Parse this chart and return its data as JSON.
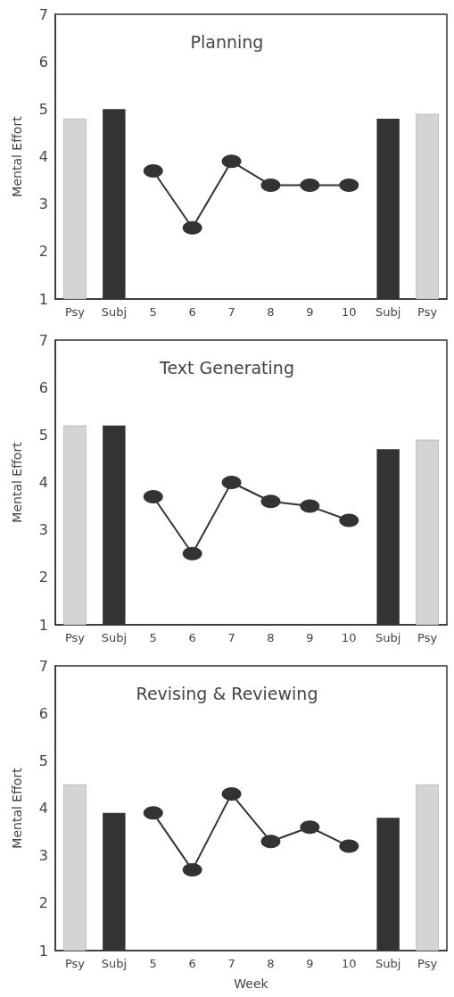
{
  "chart_data": [
    {
      "type": "bar",
      "title": "Planning",
      "ylabel": "Mental Effort",
      "categories": [
        "Psy",
        "Subj",
        "5",
        "6",
        "7",
        "8",
        "9",
        "10",
        "Subj",
        "Psy"
      ],
      "ylim": [
        1,
        7
      ],
      "yticks": [
        1,
        2,
        3,
        4,
        5,
        6,
        7
      ],
      "marker": "circle",
      "series": [
        {
          "colors": [
            "#d4d4d4",
            "#333333",
            null,
            null,
            null,
            null,
            null,
            null,
            "#333333",
            "#d4d4d4"
          ],
          "values": [
            4.8,
            5.0,
            null,
            null,
            null,
            null,
            null,
            null,
            4.8,
            4.9
          ]
        },
        {
          "type": "line",
          "color": "#333333",
          "values": [
            null,
            null,
            3.7,
            2.5,
            3.9,
            3.4,
            3.4,
            3.4,
            null,
            null
          ]
        }
      ]
    },
    {
      "type": "bar",
      "title": "Text Generating",
      "ylabel": "Mental Effort",
      "categories": [
        "Psy",
        "Subj",
        "5",
        "6",
        "7",
        "8",
        "9",
        "10",
        "Subj",
        "Psy"
      ],
      "ylim": [
        1,
        7
      ],
      "yticks": [
        1,
        2,
        3,
        4,
        5,
        6,
        7
      ],
      "marker": "circle",
      "series": [
        {
          "colors": [
            "#d4d4d4",
            "#333333",
            null,
            null,
            null,
            null,
            null,
            null,
            "#333333",
            "#d4d4d4"
          ],
          "values": [
            5.2,
            5.2,
            null,
            null,
            null,
            null,
            null,
            null,
            4.7,
            4.9
          ]
        },
        {
          "type": "line",
          "color": "#333333",
          "values": [
            null,
            null,
            3.7,
            2.5,
            4.0,
            3.6,
            3.5,
            3.2,
            null,
            null
          ]
        }
      ]
    },
    {
      "type": "bar",
      "title": "Revising & Reviewing",
      "ylabel": "Mental Effort",
      "xlabel": "Week",
      "categories": [
        "Psy",
        "Subj",
        "5",
        "6",
        "7",
        "8",
        "9",
        "10",
        "Subj",
        "Psy"
      ],
      "ylim": [
        1,
        7
      ],
      "yticks": [
        1,
        2,
        3,
        4,
        5,
        6,
        7
      ],
      "marker": "circle",
      "series": [
        {
          "colors": [
            "#d4d4d4",
            "#333333",
            null,
            null,
            null,
            null,
            null,
            null,
            "#333333",
            "#d4d4d4"
          ],
          "values": [
            4.5,
            3.9,
            null,
            null,
            null,
            null,
            null,
            null,
            3.8,
            4.5
          ]
        },
        {
          "type": "line",
          "color": "#333333",
          "values": [
            null,
            null,
            3.9,
            2.7,
            4.3,
            3.3,
            3.6,
            3.2,
            null,
            null
          ]
        }
      ]
    }
  ]
}
